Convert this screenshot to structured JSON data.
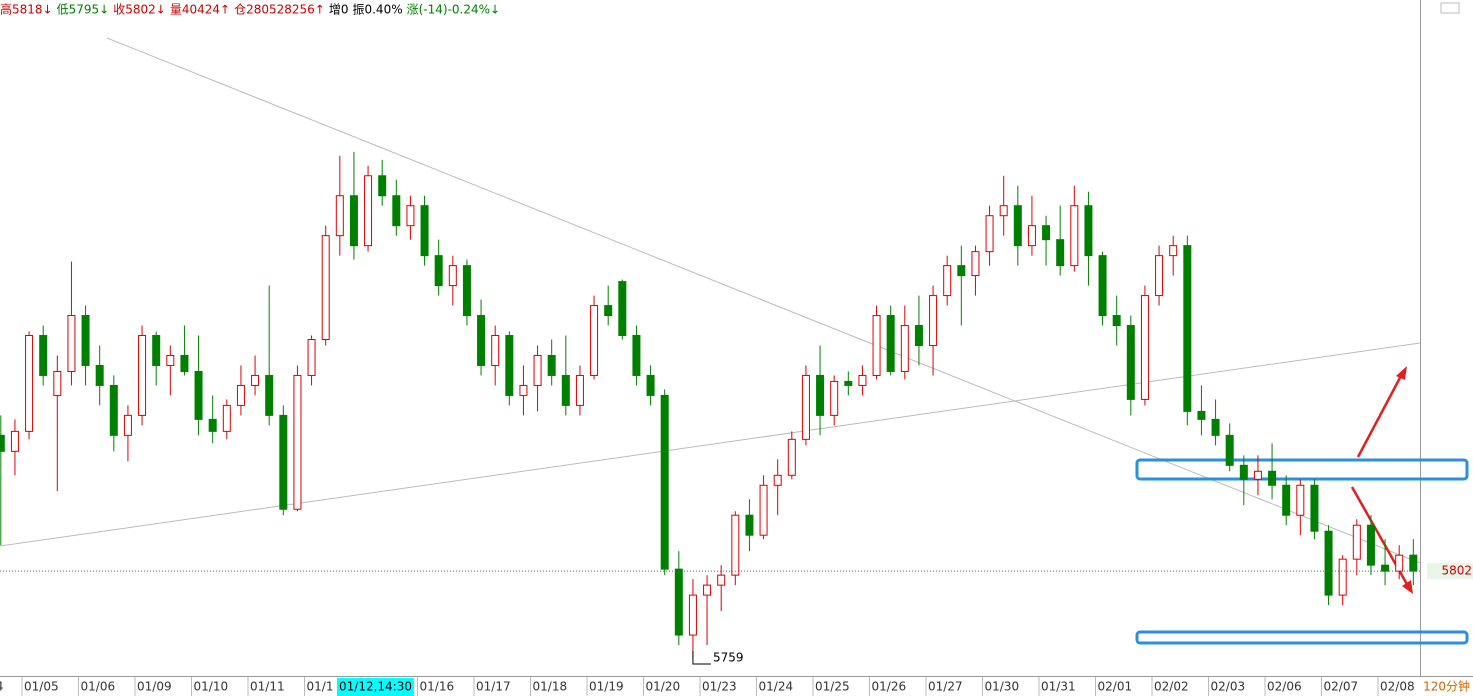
{
  "chart_data": {
    "type": "candlestick",
    "header": [
      {
        "text": "高5818↓",
        "color": "#cc0000"
      },
      {
        "text": "低5795↓",
        "color": "#008000"
      },
      {
        "text": "收5802↓",
        "color": "#cc0000"
      },
      {
        "text": "量40424↑",
        "color": "#cc0000"
      },
      {
        "text": "仓280528256↑",
        "color": "#cc0000"
      },
      {
        "text": "增0",
        "color": "#000000"
      },
      {
        "text": "振0.40%",
        "color": "#000000"
      },
      {
        "text": "涨(-14)-0.24%↓",
        "color": "#008000"
      }
    ],
    "period": "120分钟",
    "up_color": "#dd0000",
    "down_color": "#008000",
    "ylim": [
      5755,
      6078
    ],
    "categories": [
      "4",
      null,
      "01/05",
      null,
      null,
      null,
      "01/06",
      null,
      null,
      null,
      "01/09",
      null,
      null,
      null,
      "01/10",
      null,
      null,
      null,
      "01/11",
      null,
      null,
      null,
      "01/1",
      null,
      null,
      null,
      "01/12,14:30",
      null,
      null,
      null,
      "01/16",
      null,
      null,
      null,
      "01/17",
      null,
      null,
      null,
      "01/18",
      null,
      null,
      null,
      "01/19",
      null,
      null,
      null,
      "01/20",
      null,
      null,
      null,
      "01/23",
      null,
      null,
      null,
      "01/24",
      null,
      null,
      null,
      "01/25",
      null,
      null,
      null,
      "01/26",
      null,
      null,
      null,
      "01/27",
      null,
      null,
      null,
      "01/30",
      null,
      null,
      null,
      "01/31",
      null,
      null,
      null,
      "02/01",
      null,
      null,
      null,
      "02/02",
      null,
      null,
      null,
      "02/03",
      null,
      null,
      null,
      "02/06",
      null,
      null,
      null,
      "02/07",
      null,
      null,
      null,
      "02/08",
      null,
      null
    ],
    "ohlc": [
      [
        5870,
        5880,
        5815,
        5862
      ],
      [
        5862,
        5878,
        5850,
        5872
      ],
      [
        5872,
        5922,
        5868,
        5920
      ],
      [
        5920,
        5925,
        5895,
        5900
      ],
      [
        5890,
        5910,
        5842,
        5902
      ],
      [
        5902,
        5957,
        5895,
        5930
      ],
      [
        5930,
        5935,
        5895,
        5905
      ],
      [
        5905,
        5915,
        5885,
        5895
      ],
      [
        5895,
        5900,
        5862,
        5870
      ],
      [
        5870,
        5885,
        5857,
        5880
      ],
      [
        5880,
        5925,
        5875,
        5920
      ],
      [
        5920,
        5922,
        5895,
        5905
      ],
      [
        5905,
        5915,
        5890,
        5910
      ],
      [
        5910,
        5925,
        5900,
        5902
      ],
      [
        5902,
        5920,
        5870,
        5878
      ],
      [
        5878,
        5890,
        5866,
        5872
      ],
      [
        5872,
        5888,
        5868,
        5885
      ],
      [
        5885,
        5905,
        5880,
        5895
      ],
      [
        5895,
        5910,
        5890,
        5900
      ],
      [
        5900,
        5945,
        5875,
        5880
      ],
      [
        5880,
        5885,
        5830,
        5833
      ],
      [
        5833,
        5905,
        5832,
        5900
      ],
      [
        5900,
        5920,
        5895,
        5918
      ],
      [
        5918,
        5975,
        5915,
        5970
      ],
      [
        5970,
        6010,
        5960,
        5990
      ],
      [
        5990,
        6012,
        5958,
        5965
      ],
      [
        5965,
        6005,
        5962,
        6000
      ],
      [
        6000,
        6008,
        5985,
        5990
      ],
      [
        5990,
        5998,
        5970,
        5975
      ],
      [
        5975,
        5990,
        5968,
        5985
      ],
      [
        5985,
        5990,
        5955,
        5960
      ],
      [
        5960,
        5968,
        5940,
        5945
      ],
      [
        5945,
        5960,
        5935,
        5955
      ],
      [
        5955,
        5958,
        5925,
        5930
      ],
      [
        5930,
        5938,
        5900,
        5905
      ],
      [
        5905,
        5925,
        5895,
        5920
      ],
      [
        5920,
        5922,
        5885,
        5890
      ],
      [
        5890,
        5905,
        5880,
        5895
      ],
      [
        5895,
        5915,
        5882,
        5910
      ],
      [
        5910,
        5918,
        5895,
        5900
      ],
      [
        5900,
        5920,
        5880,
        5885
      ],
      [
        5885,
        5905,
        5880,
        5900
      ],
      [
        5900,
        5940,
        5898,
        5935
      ],
      [
        5935,
        5945,
        5925,
        5930
      ],
      [
        5947,
        5948,
        5918,
        5920
      ],
      [
        5920,
        5925,
        5895,
        5900
      ],
      [
        5900,
        5905,
        5885,
        5890
      ],
      [
        5890,
        5893,
        5800,
        5803
      ],
      [
        5803,
        5812,
        5765,
        5770
      ],
      [
        5770,
        5798,
        5759,
        5790
      ],
      [
        5790,
        5800,
        5765,
        5795
      ],
      [
        5795,
        5805,
        5782,
        5800
      ],
      [
        5800,
        5832,
        5795,
        5830
      ],
      [
        5830,
        5838,
        5812,
        5820
      ],
      [
        5820,
        5850,
        5818,
        5845
      ],
      [
        5845,
        5858,
        5830,
        5850
      ],
      [
        5850,
        5872,
        5848,
        5868
      ],
      [
        5868,
        5905,
        5865,
        5900
      ],
      [
        5900,
        5915,
        5870,
        5880
      ],
      [
        5880,
        5900,
        5875,
        5897
      ],
      [
        5897,
        5902,
        5890,
        5895
      ],
      [
        5895,
        5905,
        5890,
        5900
      ],
      [
        5900,
        5935,
        5898,
        5930
      ],
      [
        5930,
        5935,
        5900,
        5902
      ],
      [
        5902,
        5935,
        5898,
        5925
      ],
      [
        5925,
        5940,
        5905,
        5915
      ],
      [
        5915,
        5945,
        5900,
        5940
      ],
      [
        5940,
        5960,
        5935,
        5955
      ],
      [
        5955,
        5965,
        5925,
        5950
      ],
      [
        5950,
        5965,
        5940,
        5962
      ],
      [
        5962,
        5985,
        5955,
        5980
      ],
      [
        5980,
        6000,
        5970,
        5985
      ],
      [
        5985,
        5995,
        5955,
        5965
      ],
      [
        5965,
        5990,
        5960,
        5975
      ],
      [
        5975,
        5980,
        5955,
        5968
      ],
      [
        5968,
        5985,
        5950,
        5955
      ],
      [
        5955,
        5995,
        5952,
        5985
      ],
      [
        5985,
        5992,
        5945,
        5960
      ],
      [
        5960,
        5962,
        5925,
        5930
      ],
      [
        5930,
        5940,
        5915,
        5925
      ],
      [
        5925,
        5930,
        5880,
        5888
      ],
      [
        5888,
        5945,
        5885,
        5940
      ],
      [
        5940,
        5965,
        5935,
        5960
      ],
      [
        5960,
        5970,
        5950,
        5965
      ],
      [
        5965,
        5970,
        5875,
        5882
      ],
      [
        5882,
        5895,
        5870,
        5878
      ],
      [
        5878,
        5888,
        5865,
        5870
      ],
      [
        5870,
        5876,
        5852,
        5855
      ],
      [
        5855,
        5860,
        5835,
        5848
      ],
      [
        5848,
        5860,
        5840,
        5852
      ],
      [
        5852,
        5866,
        5838,
        5845
      ],
      [
        5845,
        5850,
        5825,
        5830
      ],
      [
        5830,
        5848,
        5820,
        5845
      ],
      [
        5845,
        5848,
        5818,
        5822
      ],
      [
        5822,
        5825,
        5785,
        5790
      ],
      [
        5790,
        5810,
        5785,
        5808
      ],
      [
        5808,
        5828,
        5800,
        5825
      ],
      [
        5825,
        5830,
        5800,
        5805
      ],
      [
        5805,
        5818,
        5795,
        5802
      ],
      [
        5802,
        5815,
        5798,
        5810
      ],
      [
        5810,
        5818,
        5795,
        5802
      ]
    ]
  }
}
